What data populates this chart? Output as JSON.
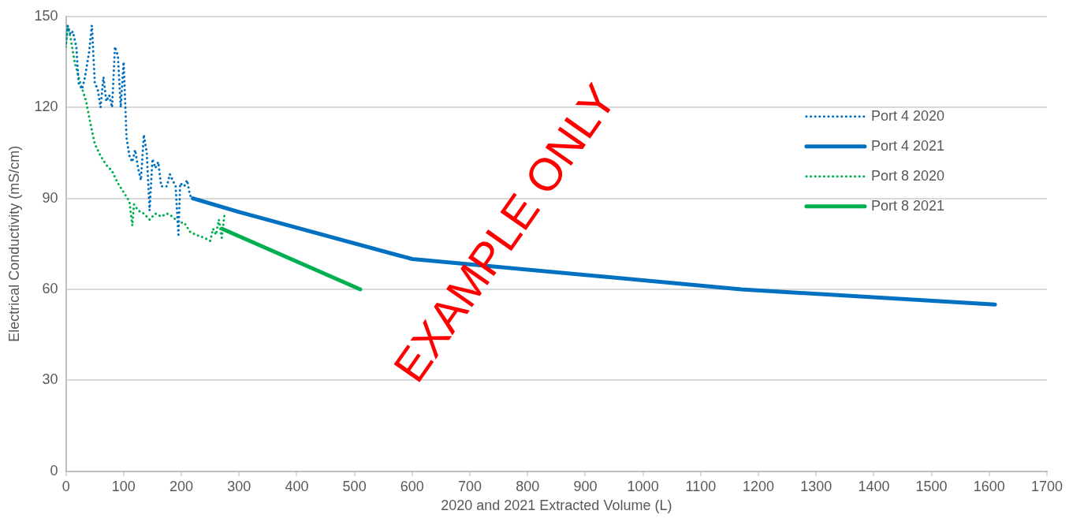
{
  "chart_data": {
    "type": "line",
    "xlabel": "2020 and 2021 Extracted Volume (L)",
    "ylabel": "Electrical Conductivity (mS/cm)",
    "xlim": [
      0,
      1700
    ],
    "xticks": [
      0,
      100,
      200,
      300,
      400,
      500,
      600,
      700,
      800,
      900,
      1000,
      1100,
      1200,
      1300,
      1400,
      1500,
      1600,
      1700
    ],
    "ylim": [
      0,
      150
    ],
    "yticks": [
      0,
      30,
      60,
      90,
      120,
      150
    ],
    "grid": "y",
    "legend": "top right",
    "marker": "none",
    "annotations": [
      "EXAMPLE ONLY"
    ],
    "series": [
      {
        "name": "Port 4 2020",
        "color": "#0070c0",
        "line_style": "dotted",
        "x": [
          0,
          3,
          8,
          12,
          18,
          22,
          28,
          33,
          40,
          45,
          50,
          55,
          60,
          65,
          70,
          75,
          80,
          85,
          90,
          95,
          100,
          105,
          110,
          115,
          120,
          125,
          130,
          135,
          140,
          145,
          150,
          155,
          160,
          165,
          175,
          180,
          190,
          195,
          198,
          205,
          210,
          215,
          220
        ],
        "values": [
          141,
          147,
          144,
          145,
          140,
          128,
          126,
          130,
          138,
          147,
          128,
          126,
          120,
          130,
          122,
          124,
          120,
          140,
          137,
          120,
          135,
          110,
          104,
          102,
          106,
          100,
          96,
          111,
          105,
          86,
          103,
          100,
          102,
          94,
          94,
          98,
          94,
          78,
          95,
          94,
          96,
          91,
          90
        ]
      },
      {
        "name": "Port 4 2021",
        "color": "#0070c0",
        "line_style": "solid",
        "x": [
          220,
          300,
          600,
          1170,
          1610
        ],
        "values": [
          90,
          85.5,
          70,
          60,
          55
        ]
      },
      {
        "name": "Port 8 2020",
        "color": "#00b050",
        "line_style": "dotted",
        "x": [
          0,
          3,
          8,
          15,
          25,
          35,
          40,
          50,
          60,
          70,
          80,
          90,
          100,
          110,
          115,
          118,
          125,
          135,
          145,
          155,
          165,
          175,
          185,
          195,
          205,
          215,
          225,
          240,
          250,
          255,
          260,
          265,
          270,
          275
        ],
        "values": [
          140,
          147,
          143,
          135,
          128,
          122,
          117,
          108,
          104,
          101,
          99,
          95,
          92,
          89,
          81,
          88,
          86,
          85,
          83,
          85,
          84,
          85,
          84,
          82,
          82,
          79,
          78,
          77,
          76,
          80,
          78,
          83,
          77,
          85
        ]
      },
      {
        "name": "Port 8 2021",
        "color": "#00b050",
        "line_style": "solid",
        "x": [
          270,
          510
        ],
        "values": [
          80,
          60
        ]
      }
    ]
  }
}
